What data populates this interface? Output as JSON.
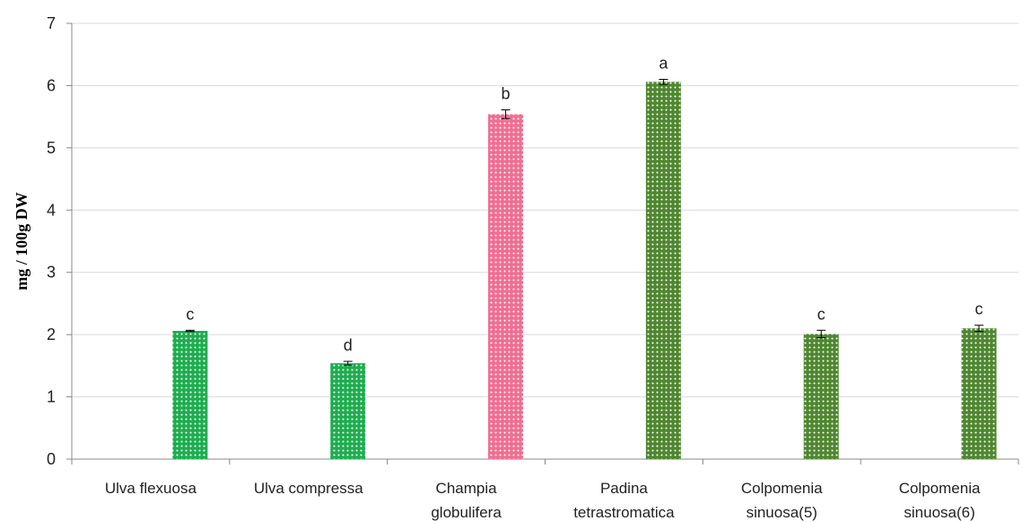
{
  "chart_data": {
    "type": "bar",
    "title": "",
    "xlabel": "",
    "ylabel": "mg / 100g DW",
    "ylim": [
      0,
      7
    ],
    "yticks": [
      "0",
      "1",
      "2",
      "3",
      "4",
      "5",
      "6",
      "7"
    ],
    "grid": true,
    "categories": [
      [
        "Ulva flexuosa"
      ],
      [
        "Ulva compressa"
      ],
      [
        "Champia",
        "globulifera"
      ],
      [
        "Padina",
        "tetrastromatica"
      ],
      [
        "Colpomenia",
        "sinuosa(5)"
      ],
      [
        "Colpomenia",
        "sinuosa(6)"
      ]
    ],
    "values": [
      2.06,
      1.54,
      5.54,
      6.06,
      2.01,
      2.1
    ],
    "errors": [
      0.01,
      0.03,
      0.07,
      0.04,
      0.06,
      0.05
    ],
    "significance": [
      "c",
      "d",
      "b",
      "a",
      "c",
      "c"
    ],
    "colors": [
      "#1fad4f",
      "#1fad4f",
      "#ef6f93",
      "#4f8730",
      "#4f8730",
      "#4f8730"
    ]
  }
}
